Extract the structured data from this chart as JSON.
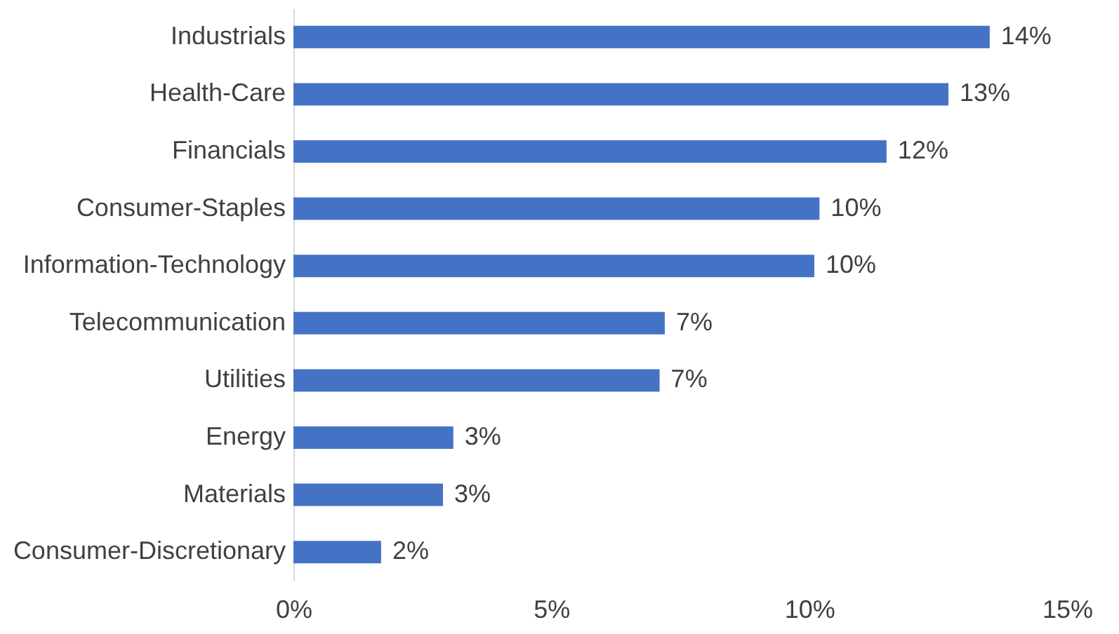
{
  "chart_data": {
    "type": "bar",
    "orientation": "horizontal",
    "categories": [
      "Industrials",
      "Health-Care",
      "Financials",
      "Consumer-Staples",
      "Information-Technology",
      "Telecommunication",
      "Utilities",
      "Energy",
      "Materials",
      "Consumer-Discretionary"
    ],
    "values": [
      13.5,
      12.7,
      11.5,
      10.2,
      10.1,
      7.2,
      7.1,
      3.1,
      2.9,
      1.7
    ],
    "value_labels": [
      "14%",
      "13%",
      "12%",
      "10%",
      "10%",
      "7%",
      "7%",
      "3%",
      "3%",
      "2%"
    ],
    "color": "#4472c4",
    "xlim": [
      0,
      15
    ],
    "xticks": [
      {
        "value": 0,
        "label": "0%"
      },
      {
        "value": 5,
        "label": "5%"
      },
      {
        "value": 10,
        "label": "10%"
      },
      {
        "value": 15,
        "label": "15%"
      }
    ]
  }
}
